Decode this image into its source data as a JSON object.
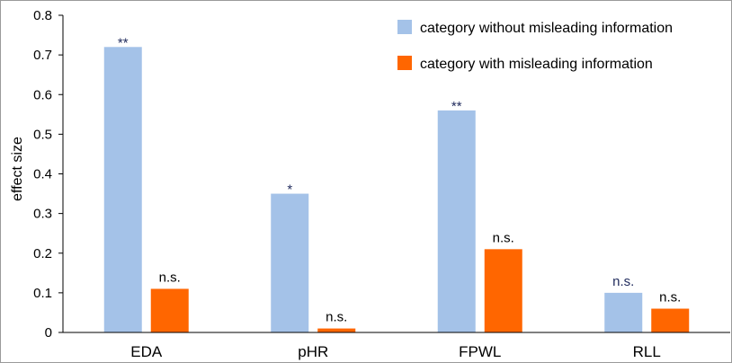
{
  "chart_data": {
    "type": "bar",
    "title": "",
    "xlabel": "",
    "ylabel": "effect size",
    "ylim": [
      0,
      0.8
    ],
    "yticks": [
      "0",
      "0.1",
      "0.2",
      "0.3",
      "0.4",
      "0.5",
      "0.6",
      "0.7",
      "0.8"
    ],
    "categories": [
      "EDA",
      "pHR",
      "FPWL",
      "RLL"
    ],
    "legend_position": "top-right",
    "grid": false,
    "series": [
      {
        "name": "category without misleading information",
        "color": "#a4c2e8",
        "values": [
          0.72,
          0.35,
          0.56,
          0.1
        ],
        "annotations": [
          "**",
          "*",
          "**",
          "n.s."
        ],
        "annotation_color": "#1f2a5c"
      },
      {
        "name": "category with misleading information",
        "color": "#ff6600",
        "values": [
          0.11,
          0.01,
          0.21,
          0.06
        ],
        "annotations": [
          "n.s.",
          "n.s.",
          "n.s.",
          "n.s."
        ],
        "annotation_color": "#000000"
      }
    ]
  }
}
